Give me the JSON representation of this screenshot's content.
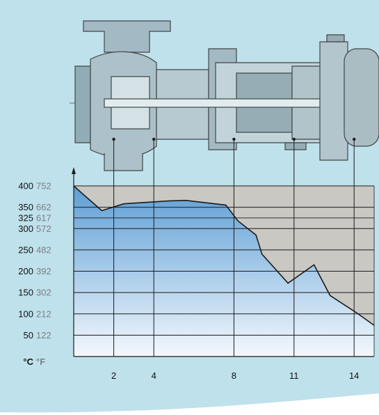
{
  "chart_data": {
    "type": "area",
    "title": "",
    "xlabel": "",
    "ylabel": "",
    "units": {
      "celsius": "°C",
      "fahrenheit": "°F"
    },
    "x_ticks": [
      "2",
      "4",
      "8",
      "11",
      "14"
    ],
    "y_ticks": [
      {
        "c": "400",
        "f": "752"
      },
      {
        "c": "350",
        "f": "662"
      },
      {
        "c": "325",
        "f": "617"
      },
      {
        "c": "300",
        "f": "572"
      },
      {
        "c": "250",
        "f": "482"
      },
      {
        "c": "200",
        "f": "392"
      },
      {
        "c": "150",
        "f": "302"
      },
      {
        "c": "100",
        "f": "212"
      },
      {
        "c": "50",
        "f": "122"
      }
    ],
    "ylim": [
      0,
      400
    ],
    "xlim": [
      0,
      15
    ],
    "series": [
      {
        "points": [
          [
            0.0,
            400
          ],
          [
            1.4,
            342
          ],
          [
            2.5,
            358
          ],
          [
            4.8,
            365
          ],
          [
            5.6,
            366
          ],
          [
            7.6,
            355
          ],
          [
            8.2,
            318
          ],
          [
            9.1,
            285
          ],
          [
            9.4,
            240
          ],
          [
            10.7,
            172
          ],
          [
            12.0,
            215
          ],
          [
            12.8,
            143
          ],
          [
            14.2,
            100
          ],
          [
            15.0,
            73
          ]
        ]
      }
    ],
    "callouts_x": [
      2,
      4,
      8,
      11,
      14
    ],
    "colors": {
      "background": "#bfe1ec",
      "plot_background": "#c9c8c3",
      "area_top": "#5d9ed5",
      "area_bottom": "#f3f8fd",
      "line": "#1a1a1a"
    },
    "grid": true
  }
}
